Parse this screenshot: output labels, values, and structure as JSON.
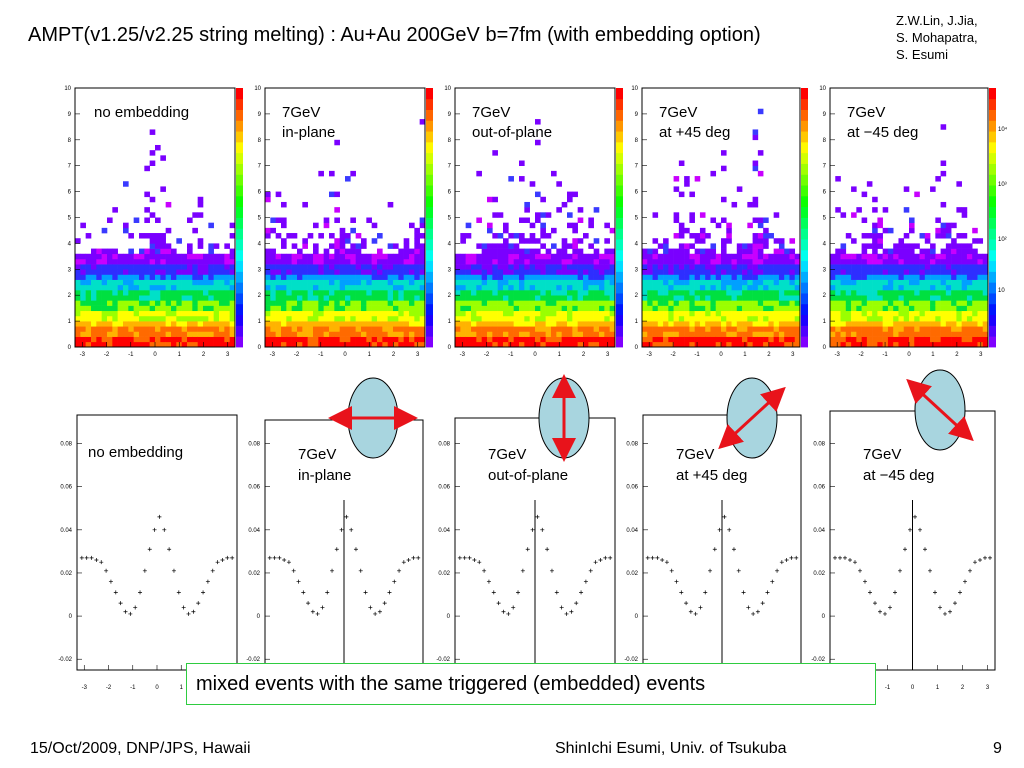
{
  "title": "AMPT(v1.25/v2.25 string melting) : Au+Au 200GeV b=7fm (with embedding option)",
  "authors": [
    "Z.W.Lin, J.Jia,",
    "S. Mohapatra,",
    "S. Esumi"
  ],
  "note": "mixed events with the same triggered (embedded) events",
  "footer": {
    "left": "15/Oct/2009, DNP/JPS, Hawaii",
    "center": "ShinIchi Esumi, Univ. of Tsukuba",
    "page": "9"
  },
  "colors": {
    "arrow": "#e8131b",
    "ellipse_fill": "#a8d5df",
    "note_border": "#2ecc40"
  },
  "chart_data": [
    {
      "type": "heatmap",
      "row": "top",
      "panels": [
        {
          "label": [
            "no embedding"
          ]
        },
        {
          "label": [
            "7GeV",
            "in-plane"
          ]
        },
        {
          "label": [
            "7GeV",
            "out-of-plane"
          ]
        },
        {
          "label": [
            "7GeV",
            "at +45 deg"
          ]
        },
        {
          "label": [
            "7GeV",
            "at −45 deg"
          ]
        }
      ],
      "xlim": [
        -3.3,
        3.3
      ],
      "ylim": [
        0,
        10
      ],
      "xticks": [
        "-3",
        "-2",
        "-1",
        "0",
        "1",
        "2",
        "3"
      ],
      "yticks": [
        "0",
        "1",
        "2",
        "3",
        "4",
        "5",
        "6",
        "7",
        "8",
        "9",
        "10"
      ],
      "color_scale": "log",
      "zticks": [
        "10",
        "10²",
        "10³",
        "10⁴"
      ]
    },
    {
      "type": "scatter",
      "row": "bottom",
      "panels": [
        {
          "label": [
            "no embedding"
          ],
          "direction": "none"
        },
        {
          "label": [
            "7GeV",
            "in-plane"
          ],
          "direction": "in-plane"
        },
        {
          "label": [
            "7GeV",
            "out-of-plane"
          ],
          "direction": "out-of-plane"
        },
        {
          "label": [
            "7GeV",
            "at +45 deg"
          ],
          "direction": "+45"
        },
        {
          "label": [
            "7GeV",
            "at −45 deg"
          ],
          "direction": "-45"
        }
      ],
      "xlim": [
        -3.3,
        3.3
      ],
      "ylim": [
        -0.025,
        0.09
      ],
      "xticks": [
        "-3",
        "-2",
        "-1",
        "0",
        "1",
        "2",
        "3"
      ],
      "yticks": [
        "-0.02",
        "0",
        "0.02",
        "0.04",
        "0.06",
        "0.08"
      ],
      "x": [
        -3.1,
        -2.9,
        -2.7,
        -2.5,
        -2.3,
        -2.1,
        -1.9,
        -1.7,
        -1.5,
        -1.3,
        -1.1,
        -0.9,
        -0.7,
        -0.5,
        -0.3,
        -0.1,
        0.1,
        0.3,
        0.5,
        0.7,
        0.9,
        1.1,
        1.3,
        1.5,
        1.7,
        1.9,
        2.1,
        2.3,
        2.5,
        2.7,
        2.9,
        3.1
      ],
      "y": [
        0.027,
        0.027,
        0.027,
        0.026,
        0.025,
        0.021,
        0.016,
        0.011,
        0.006,
        0.002,
        0.001,
        0.004,
        0.011,
        0.021,
        0.031,
        0.04,
        0.046,
        0.04,
        0.031,
        0.021,
        0.011,
        0.004,
        0.001,
        0.002,
        0.006,
        0.011,
        0.016,
        0.021,
        0.025,
        0.026,
        0.027,
        0.027
      ]
    }
  ]
}
